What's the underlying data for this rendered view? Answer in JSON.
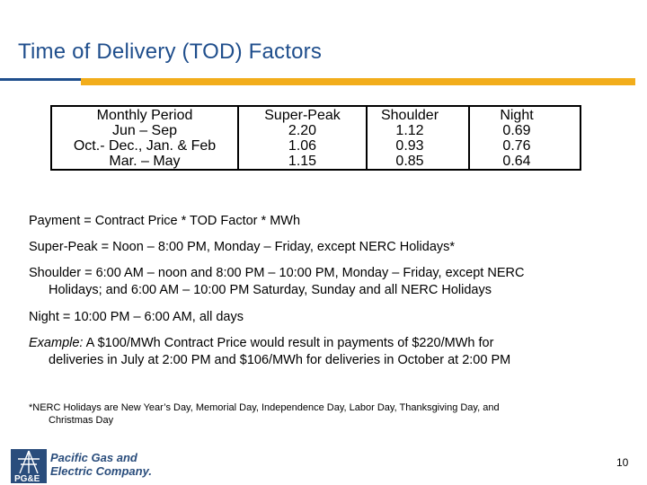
{
  "title": "Time of Delivery (TOD) Factors",
  "colors": {
    "title": "#1f4e8c",
    "accent_bar": "#f2ad1b",
    "logo": "#2a4d7c"
  },
  "table": {
    "columns": [
      "Monthly Period",
      "Super-Peak",
      "Shoulder",
      "Night"
    ],
    "rows": [
      [
        "Jun – Sep",
        "2.20",
        "1.12",
        "0.69"
      ],
      [
        "Oct.- Dec., Jan. & Feb",
        "1.06",
        "0.93",
        "0.76"
      ],
      [
        "Mar. – May",
        "1.15",
        "0.85",
        "0.64"
      ]
    ]
  },
  "payment": "Payment = Contract Price * TOD Factor * MWh",
  "super_peak": "Super-Peak = Noon – 8:00 PM, Monday – Friday, except NERC Holidays*",
  "shoulder": {
    "line1": "Shoulder = 6:00 AM – noon and 8:00 PM – 10:00 PM, Monday – Friday, except NERC",
    "line2": "Holidays; and 6:00 AM – 10:00 PM Saturday, Sunday and all NERC Holidays"
  },
  "night": "Night = 10:00 PM – 6:00 AM, all days",
  "example": {
    "label": "Example:",
    "line1": " A $100/MWh Contract Price would result in payments of $220/MWh for",
    "line2": "deliveries in July at 2:00 PM and $106/MWh for deliveries in October at 2:00 PM"
  },
  "footnote": {
    "line1": "*NERC Holidays are New Year’s Day, Memorial Day, Independence Day, Labor Day, Thanksgiving Day, and",
    "line2": "Christmas Day"
  },
  "logo": {
    "line1": "Pacific Gas and",
    "line2": "Electric Company.",
    "mark_text": "PG&E",
    "icon": "pge-logo-icon"
  },
  "page_number": "10"
}
